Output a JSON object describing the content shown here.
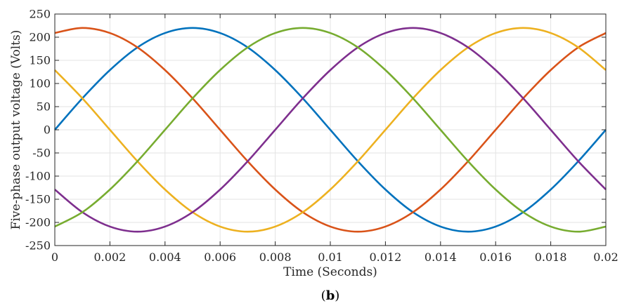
{
  "chart_data": {
    "type": "line",
    "title": "",
    "xlabel": "Time (Seconds)",
    "ylabel": "Five-phase output voltage (Volts)",
    "xlim": [
      0,
      0.02
    ],
    "ylim": [
      -250,
      250
    ],
    "grid": true,
    "legend": "none",
    "x_ticks": [
      "0",
      "0.002",
      "0.004",
      "0.006",
      "0.008",
      "0.01",
      "0.012",
      "0.014",
      "0.016",
      "0.018",
      "0.02"
    ],
    "y_ticks": [
      "250",
      "200",
      "150",
      "100",
      "50",
      "0",
      "-50",
      "-100",
      "-150",
      "-200",
      "-250"
    ],
    "x": [
      0,
      0.001,
      0.002,
      0.003,
      0.004,
      0.005,
      0.006,
      0.007,
      0.008,
      0.009,
      0.01,
      0.011,
      0.012,
      0.013,
      0.014,
      0.015,
      0.016,
      0.017,
      0.018,
      0.019,
      0.02
    ],
    "series": [
      {
        "color": "#0072BD",
        "values": [
          0,
          68,
          129,
          178,
          209,
          220,
          209,
          178,
          129,
          68,
          0,
          -68,
          -129,
          -178,
          -209,
          -220,
          -209,
          -178,
          -129,
          -68,
          0
        ]
      },
      {
        "color": "#D95319",
        "values": [
          209,
          220,
          209,
          178,
          129,
          68,
          0,
          -68,
          -129,
          -178,
          -209,
          -220,
          -209,
          -178,
          -129,
          -68,
          0,
          68,
          129,
          178,
          209
        ]
      },
      {
        "color": "#EDB120",
        "values": [
          129,
          68,
          0,
          -68,
          -129,
          -178,
          -209,
          -220,
          -209,
          -178,
          -129,
          -68,
          0,
          68,
          129,
          178,
          209,
          220,
          209,
          178,
          129
        ]
      },
      {
        "color": "#7E2F8E",
        "values": [
          -129,
          -178,
          -209,
          -220,
          -209,
          -178,
          -129,
          -68,
          0,
          68,
          129,
          178,
          209,
          220,
          209,
          178,
          129,
          68,
          0,
          -68,
          -129
        ]
      },
      {
        "color": "#77AC30",
        "values": [
          -209,
          -178,
          -129,
          -68,
          0,
          68,
          129,
          178,
          209,
          220,
          209,
          178,
          129,
          68,
          0,
          -68,
          -129,
          -178,
          -209,
          -220,
          -209
        ]
      }
    ]
  },
  "caption": {
    "open": "(",
    "bold": "b",
    "close": ")"
  }
}
